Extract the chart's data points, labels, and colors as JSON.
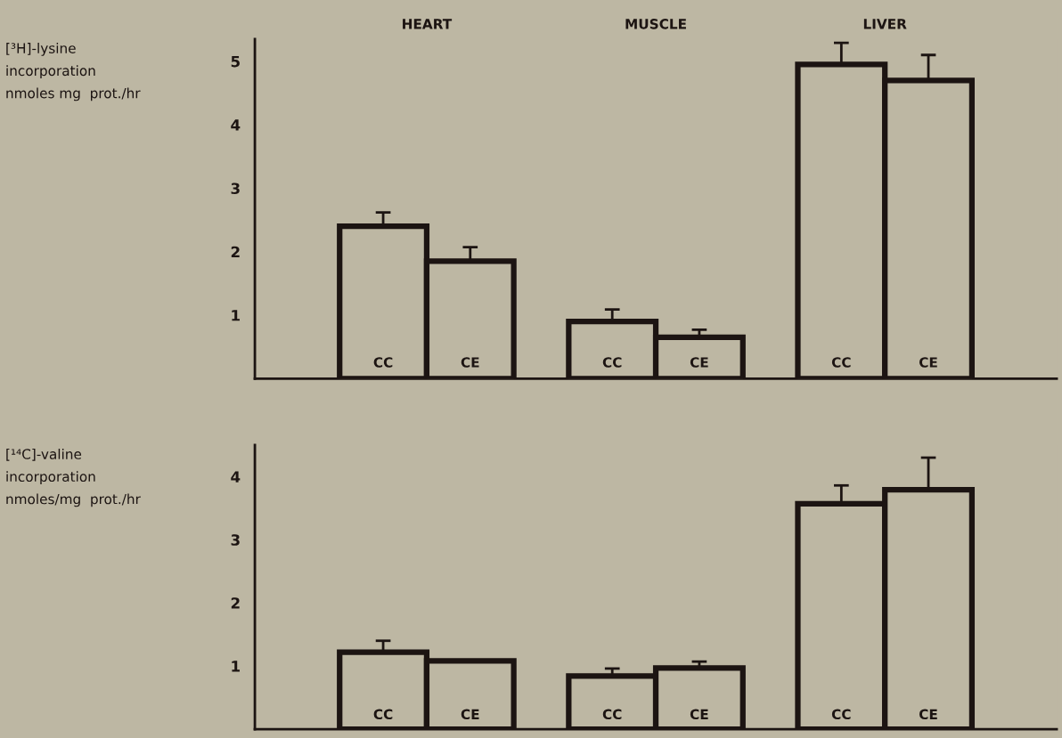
{
  "chart_data": [
    {
      "type": "bar",
      "categories": [
        "HEART",
        "MUSCLE",
        "LIVER"
      ],
      "ylabel": "[³H]-lysine\nincorporation\nnmoles mg  prot./hr",
      "ylim": [
        0,
        5.35
      ],
      "yticks": [
        1,
        2,
        3,
        4,
        5
      ],
      "grid": false,
      "legend": false,
      "series": [
        {
          "name": "CC",
          "color": "#1c1412",
          "values": [
            2.4,
            0.9,
            4.95
          ],
          "errors": [
            [
              2.4,
              2.62
            ],
            [
              0.9,
              1.09
            ],
            [
              4.95,
              5.29
            ]
          ]
        },
        {
          "name": "CE",
          "color": "#1c1412",
          "values": [
            1.85,
            0.65,
            4.7
          ],
          "errors": [
            [
              1.85,
              2.07
            ],
            [
              0.65,
              0.77
            ],
            [
              4.7,
              5.1
            ]
          ]
        }
      ]
    },
    {
      "type": "bar",
      "categories": [
        null,
        null,
        null
      ],
      "ylabel": "[¹⁴C]-valine\nincorporation\nnmoles/mg  prot./hr",
      "ylim": [
        0,
        4.5
      ],
      "yticks": [
        1,
        2,
        3,
        4
      ],
      "grid": false,
      "legend": false,
      "tick_labels": "y",
      "series": [
        {
          "name": "CC",
          "color": "#1c1412",
          "values": [
            1.22,
            0.84,
            3.57
          ],
          "errors": [
            [
              1.22,
              1.4
            ],
            [
              0.84,
              0.96
            ],
            [
              3.57,
              3.86
            ]
          ]
        },
        {
          "name": "CE",
          "color": "#1c1412",
          "values": [
            1.08,
            0.97,
            3.79
          ],
          "errors": [
            null,
            [
              0.97,
              1.07
            ],
            [
              3.79,
              4.3
            ]
          ]
        }
      ]
    }
  ]
}
